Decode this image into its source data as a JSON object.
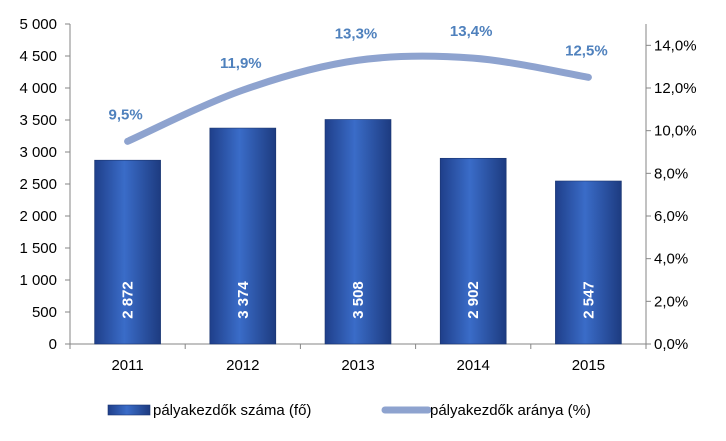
{
  "chart_data": {
    "type": "bar",
    "categories": [
      "2011",
      "2012",
      "2013",
      "2014",
      "2015"
    ],
    "series": [
      {
        "name": "pályakezdők száma (fő)",
        "type": "bar",
        "axis": "left",
        "values": [
          2872,
          3374,
          3508,
          2902,
          2547
        ],
        "labels": [
          "2 872",
          "3 374",
          "3 508",
          "2 902",
          "2 547"
        ],
        "color": "#2f5bb4"
      },
      {
        "name": "pályakezdők aránya (%)",
        "type": "line",
        "axis": "right",
        "values": [
          9.5,
          11.9,
          13.3,
          13.4,
          12.5
        ],
        "labels": [
          "9,5%",
          "11,9%",
          "13,3%",
          "13,4%",
          "12,5%"
        ],
        "color": "#8ea3cf"
      }
    ],
    "y_left": {
      "range": [
        0,
        5000
      ],
      "ticks": [
        0,
        500,
        1000,
        1500,
        2000,
        2500,
        3000,
        3500,
        4000,
        4500,
        5000
      ],
      "tick_labels": [
        "0",
        "500",
        "1 000",
        "1 500",
        "2 000",
        "2 500",
        "3 000",
        "3 500",
        "4 000",
        "4 500",
        "5 000"
      ]
    },
    "y_right": {
      "range": [
        0,
        15
      ],
      "ticks": [
        0,
        2,
        4,
        6,
        8,
        10,
        12,
        14
      ],
      "tick_labels": [
        "0,0%",
        "2,0%",
        "4,0%",
        "6,0%",
        "8,0%",
        "10,0%",
        "12,0%",
        "14,0%"
      ]
    },
    "grid": false,
    "legend_position": "bottom",
    "label_color": "#4f81bd"
  }
}
